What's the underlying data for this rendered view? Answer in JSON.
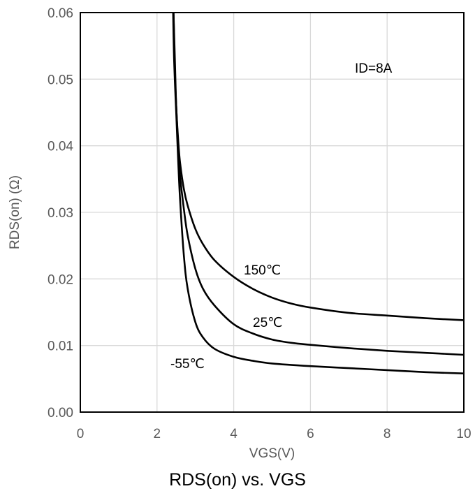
{
  "chart_data": {
    "type": "line",
    "title": "RDS(on) vs. VGS",
    "xlabel": "VGS(V)",
    "ylabel": "RDS(on) (Ω)",
    "xlim": [
      0,
      10
    ],
    "ylim": [
      0,
      0.06
    ],
    "x_ticks": [
      "0",
      "2",
      "4",
      "6",
      "8",
      "10"
    ],
    "y_ticks": [
      "0.00",
      "0.01",
      "0.02",
      "0.03",
      "0.04",
      "0.05",
      "0.06"
    ],
    "grid": true,
    "annotation": "ID=8A",
    "series": [
      {
        "name": "150℃",
        "x": [
          2.43,
          2.47,
          2.5,
          2.55,
          2.6,
          2.7,
          2.8,
          3.0,
          3.2,
          3.5,
          4.0,
          4.5,
          5.0,
          5.5,
          6.0,
          7.0,
          8.0,
          9.0,
          10.0
        ],
        "y": [
          0.06,
          0.052,
          0.046,
          0.041,
          0.0375,
          0.0335,
          0.031,
          0.0275,
          0.0252,
          0.0228,
          0.0203,
          0.0185,
          0.0172,
          0.0163,
          0.0157,
          0.0149,
          0.0145,
          0.0141,
          0.0138
        ]
      },
      {
        "name": "25℃",
        "x": [
          2.43,
          2.46,
          2.5,
          2.55,
          2.6,
          2.7,
          2.8,
          3.0,
          3.2,
          3.5,
          4.0,
          4.5,
          5.0,
          5.5,
          6.0,
          7.0,
          8.0,
          9.0,
          10.0
        ],
        "y": [
          0.06,
          0.052,
          0.046,
          0.04,
          0.0355,
          0.0305,
          0.0265,
          0.0215,
          0.0185,
          0.016,
          0.0132,
          0.0118,
          0.0109,
          0.0104,
          0.0101,
          0.0096,
          0.0092,
          0.0089,
          0.0086
        ]
      },
      {
        "name": "-55℃",
        "x": [
          2.42,
          2.44,
          2.47,
          2.5,
          2.55,
          2.6,
          2.7,
          2.8,
          3.0,
          3.2,
          3.5,
          4.0,
          4.5,
          5.0,
          6.0,
          7.0,
          8.0,
          9.0,
          10.0
        ],
        "y": [
          0.06,
          0.054,
          0.049,
          0.045,
          0.038,
          0.032,
          0.0235,
          0.0185,
          0.0135,
          0.0112,
          0.0095,
          0.0083,
          0.0077,
          0.0073,
          0.0069,
          0.0066,
          0.0063,
          0.006,
          0.0058
        ]
      }
    ]
  }
}
